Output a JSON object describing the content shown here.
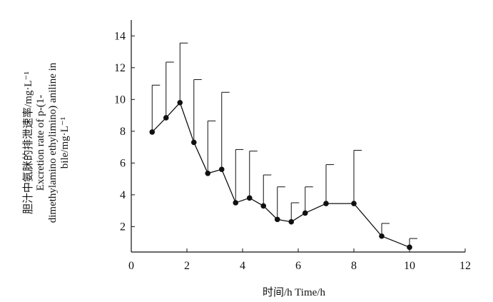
{
  "chart_data": {
    "type": "line",
    "xlabel": "时间/h  Time/h",
    "ylabel_lines": [
      "胆汁中氨脒的排泄速率/mg·L⁻¹",
      "Excretion rate of p-(1-",
      "dimethylamino ethylimino) aniline in",
      "bile/mg·L⁻¹"
    ],
    "xlim": [
      0,
      12
    ],
    "ylim": [
      0.4,
      15
    ],
    "x_ticks": [
      0,
      2,
      4,
      6,
      8,
      10,
      12
    ],
    "y_ticks": [
      2,
      4,
      6,
      8,
      10,
      12,
      14
    ],
    "grid": false,
    "series": [
      {
        "x": [
          0.75,
          1.25,
          1.75,
          2.25,
          2.75,
          3.25,
          3.75,
          4.25,
          4.75,
          5.25,
          5.75,
          6.25,
          7,
          8,
          9,
          10
        ],
        "values": [
          7.95,
          8.85,
          9.8,
          7.3,
          5.35,
          5.6,
          3.5,
          3.8,
          3.3,
          2.45,
          2.3,
          2.85,
          3.45,
          3.45,
          1.4,
          0.7
        ],
        "error_upper": [
          10.9,
          12.35,
          13.55,
          11.25,
          8.65,
          10.45,
          6.85,
          6.75,
          5.25,
          4.5,
          3.5,
          4.5,
          5.9,
          6.8,
          2.2,
          1.25
        ]
      }
    ]
  }
}
